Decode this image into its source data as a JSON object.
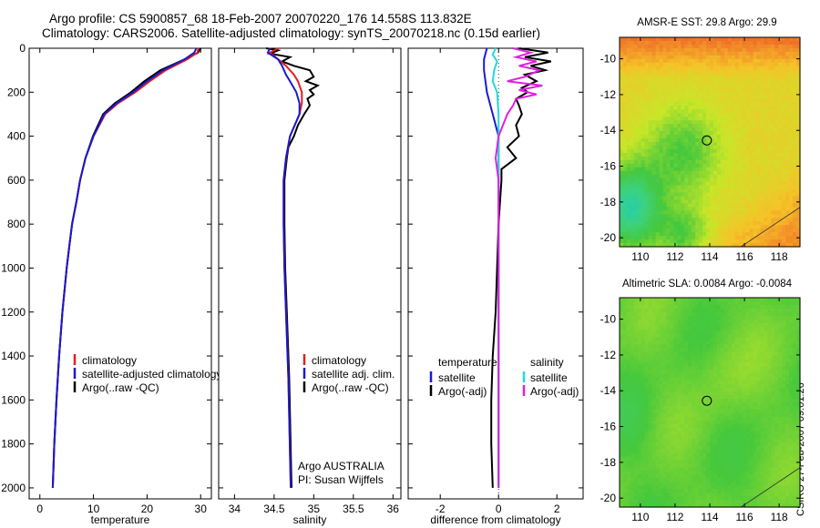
{
  "header": {
    "line1": "Argo profile: CS 5900857_68 18-Feb-2007 20070220_176 14.558S 113.832E",
    "line2": "Climatology: CARS2006. Satellite-adjusted climatology: synTS_20070218.nc (0.15d earlier)"
  },
  "credit": "CSIRO 27-Feb-2007 09:01:26",
  "colors": {
    "climatology": "#e0201b",
    "satellite": "#1a1ad0",
    "argo": "#000000",
    "sal_satellite": "#22d8e0",
    "sal_argo": "#e020e0"
  },
  "chart_data": [
    {
      "type": "line",
      "xlabel": "temperature",
      "xlim": [
        -2,
        32
      ],
      "ylim": [
        0,
        2050
      ],
      "yticks": [
        "0",
        "200",
        "400",
        "600",
        "800",
        "1000",
        "1200",
        "1400",
        "1600",
        "1800",
        "2000"
      ],
      "xticks": [
        "0",
        "10",
        "20",
        "30"
      ],
      "legend": [
        "climatology",
        "satellite-adjusted climatology",
        "Argo(..raw -QC)"
      ],
      "series": [
        {
          "name": "climatology",
          "depth": [
            0,
            20,
            50,
            100,
            150,
            200,
            250,
            300,
            400,
            500,
            600,
            700,
            800,
            900,
            1000,
            1200,
            1400,
            1600,
            1800,
            2000
          ],
          "values": [
            29.6,
            29.4,
            27.5,
            23.5,
            20.5,
            17.8,
            14.6,
            12.2,
            10.0,
            8.5,
            7.5,
            6.8,
            6.0,
            5.5,
            5.0,
            4.2,
            3.6,
            3.1,
            2.7,
            2.4
          ]
        },
        {
          "name": "satellite-adjusted climatology",
          "depth": [
            0,
            20,
            50,
            100,
            150,
            200,
            250,
            300,
            400,
            500,
            600,
            700,
            800,
            900,
            1000,
            1200,
            1400,
            1600,
            1800,
            2000
          ],
          "values": [
            29.2,
            28.8,
            27.0,
            23.0,
            20.0,
            17.4,
            14.3,
            12.0,
            10.0,
            8.5,
            7.5,
            6.8,
            6.0,
            5.5,
            5.0,
            4.2,
            3.6,
            3.1,
            2.7,
            2.4
          ]
        },
        {
          "name": "Argo(..raw -QC)",
          "depth": [
            0,
            20,
            50,
            100,
            150,
            200,
            250,
            300,
            400,
            500,
            600,
            700,
            800,
            900,
            1000,
            1200,
            1400,
            1600,
            1800,
            2000
          ],
          "values": [
            30.0,
            29.5,
            27.0,
            22.5,
            19.5,
            17.0,
            14.0,
            11.8,
            9.9,
            8.5,
            7.5,
            6.8,
            6.0,
            5.5,
            5.0,
            4.2,
            3.6,
            3.1,
            2.7,
            2.4
          ]
        }
      ]
    },
    {
      "type": "line",
      "xlabel": "salinity",
      "xlim": [
        33.8,
        36.1
      ],
      "ylim": [
        0,
        2050
      ],
      "xticks": [
        "34",
        "34.5",
        "35",
        "35.5",
        "36"
      ],
      "legend": [
        "climatology",
        "satellite adj. clim.",
        "Argo(..raw -QC)"
      ],
      "annotation": [
        "Argo AUSTRALIA",
        "PI: Susan Wijffels"
      ],
      "series": [
        {
          "name": "climatology",
          "depth": [
            0,
            20,
            50,
            80,
            120,
            150,
            200,
            250,
            300,
            400,
            500,
            600,
            800,
            1000,
            1200,
            1500,
            2000
          ],
          "values": [
            34.55,
            34.45,
            34.55,
            34.65,
            34.75,
            34.8,
            34.85,
            34.85,
            34.82,
            34.7,
            34.65,
            34.62,
            34.62,
            34.63,
            34.65,
            34.68,
            34.71
          ]
        },
        {
          "name": "satellite adj. clim.",
          "depth": [
            0,
            20,
            50,
            80,
            120,
            150,
            200,
            250,
            300,
            400,
            500,
            600,
            800,
            1000,
            1200,
            1500,
            2000
          ],
          "values": [
            34.45,
            34.42,
            34.55,
            34.6,
            34.65,
            34.7,
            34.78,
            34.82,
            34.82,
            34.7,
            34.65,
            34.62,
            34.62,
            34.63,
            34.65,
            34.68,
            34.71
          ]
        },
        {
          "name": "Argo(..raw -QC)",
          "depth": [
            0,
            10,
            25,
            40,
            60,
            80,
            100,
            130,
            150,
            170,
            190,
            210,
            230,
            260,
            300,
            350,
            400,
            450,
            500,
            600,
            800,
            1000,
            1200,
            1500,
            2000
          ],
          "values": [
            34.4,
            34.55,
            34.45,
            34.7,
            34.6,
            34.75,
            34.95,
            35.0,
            34.9,
            35.05,
            34.95,
            35.0,
            34.92,
            34.95,
            34.88,
            34.8,
            34.75,
            34.68,
            34.66,
            34.63,
            34.63,
            34.64,
            34.66,
            34.69,
            34.72
          ]
        }
      ]
    },
    {
      "type": "line",
      "xlabel": "difference from climatology",
      "xlim": [
        -3.1,
        2.9
      ],
      "ylim": [
        0,
        2050
      ],
      "xticks": [
        "-2",
        "0",
        "2"
      ],
      "legend_left_title": "temperature",
      "legend_right_title": "salinity",
      "legend_left": [
        "satellite",
        "Argo(-adj)"
      ],
      "legend_right": [
        "satellite",
        "Argo(-adj)"
      ],
      "series": [
        {
          "name": "temperature satellite",
          "depth": [
            0,
            50,
            100,
            200,
            300,
            400,
            600,
            1000,
            2000
          ],
          "values": [
            -0.4,
            -0.5,
            -0.5,
            -0.4,
            -0.2,
            0,
            0,
            0,
            0
          ]
        },
        {
          "name": "temperature Argo(-adj)",
          "depth": [
            0,
            20,
            40,
            60,
            80,
            100,
            120,
            150,
            180,
            200,
            230,
            260,
            300,
            350,
            400,
            450,
            500,
            550,
            600,
            700,
            800,
            1000,
            1200,
            1400,
            1600,
            1800,
            2000
          ],
          "values": [
            0.7,
            1.7,
            0.9,
            1.8,
            1.1,
            1.6,
            0.9,
            1.3,
            0.8,
            1.0,
            0.6,
            0.7,
            0.8,
            0.6,
            0.7,
            0.3,
            0.6,
            0.1,
            0.1,
            0.05,
            0.0,
            -0.05,
            -0.1,
            -0.2,
            -0.25,
            -0.25,
            -0.2
          ]
        },
        {
          "name": "salinity satellite",
          "depth": [
            0,
            30,
            60,
            100,
            150,
            200,
            300,
            400,
            600,
            2000
          ],
          "values": [
            -0.1,
            -0.2,
            -0.05,
            -0.15,
            -0.2,
            -0.05,
            0,
            0,
            0,
            0
          ]
        },
        {
          "name": "salinity Argo(-adj)",
          "depth": [
            0,
            20,
            40,
            60,
            80,
            100,
            130,
            150,
            170,
            190,
            210,
            230,
            260,
            300,
            400,
            500,
            600,
            1000,
            2000
          ],
          "values": [
            0.5,
            1.1,
            0.6,
            1.3,
            0.7,
            1.4,
            0.9,
            0.3,
            1.5,
            0.7,
            1.3,
            0.6,
            0.5,
            0.3,
            0.0,
            -0.1,
            0.0,
            0.0,
            0.0
          ]
        }
      ]
    },
    {
      "type": "heatmap",
      "title": "AMSR-E SST: 29.8 Argo: 29.9",
      "xlim": [
        108.8,
        119.2
      ],
      "ylim": [
        -20.5,
        -8.8
      ],
      "xticks": [
        "110",
        "112",
        "114",
        "116",
        "118"
      ],
      "yticks": [
        "-10",
        "-12",
        "-14",
        "-16",
        "-18",
        "-20"
      ],
      "marker": [
        113.832,
        -14.558
      ]
    },
    {
      "type": "heatmap",
      "title": "Altimetric SLA: 0.0084 Argo: -0.0084",
      "xlim": [
        108.8,
        119.2
      ],
      "ylim": [
        -20.5,
        -8.8
      ],
      "xticks": [
        "110",
        "112",
        "114",
        "116",
        "118"
      ],
      "yticks": [
        "-10",
        "-12",
        "-14",
        "-16",
        "-18",
        "-20"
      ],
      "marker": [
        113.832,
        -14.558
      ]
    }
  ]
}
